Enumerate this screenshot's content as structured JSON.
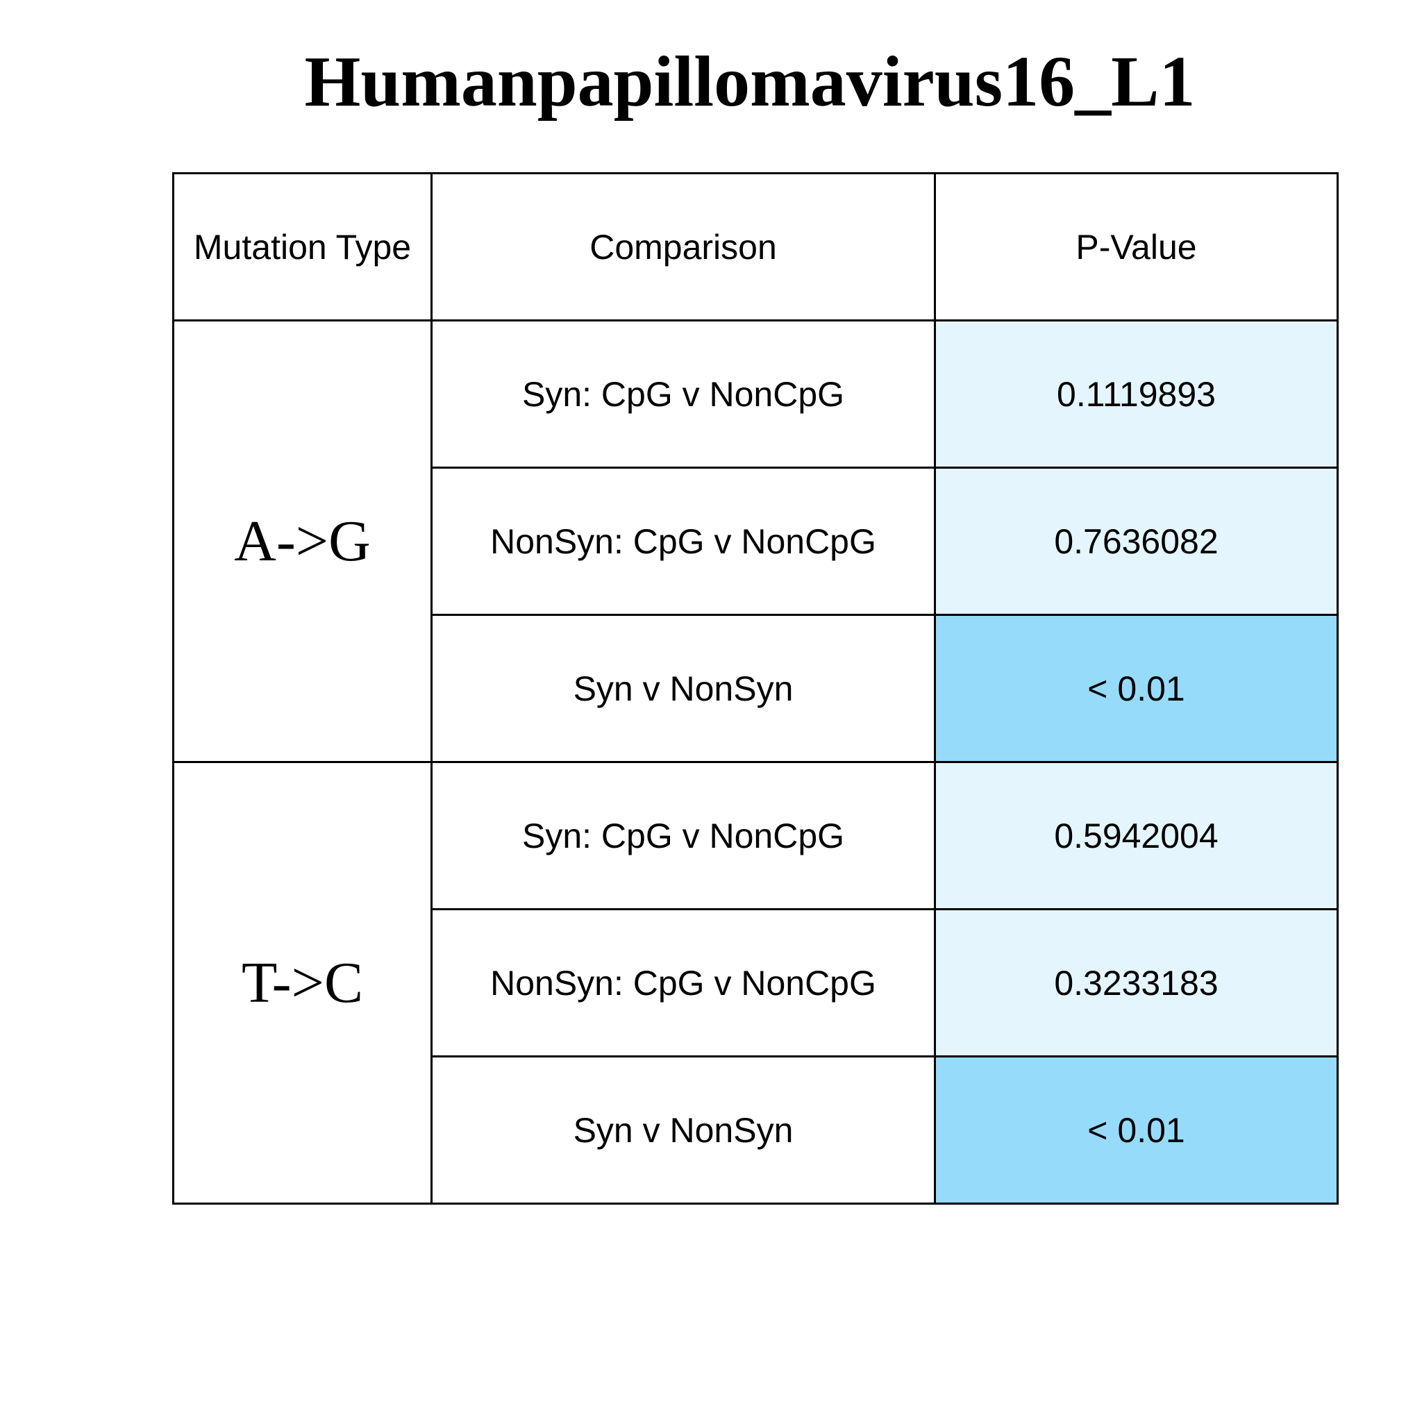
{
  "chart_data": {
    "type": "table",
    "title": "Humanpapillomavirus16_L1",
    "columns": [
      "Mutation Type",
      "Comparison",
      "P-Value"
    ],
    "groups": [
      "A->G",
      "T->C"
    ],
    "rows": [
      {
        "group": "A->G",
        "comparison": "Syn: CpG v NonCpG",
        "p_value": "0.1119893",
        "significant": false
      },
      {
        "group": "A->G",
        "comparison": "NonSyn: CpG v NonCpG",
        "p_value": "0.7636082",
        "significant": false
      },
      {
        "group": "A->G",
        "comparison": "Syn v NonSyn",
        "p_value": "< 0.01",
        "significant": true
      },
      {
        "group": "T->C",
        "comparison": "Syn: CpG v NonCpG",
        "p_value": "0.5942004",
        "significant": false
      },
      {
        "group": "T->C",
        "comparison": "NonSyn: CpG v NonCpG",
        "p_value": "0.3233183",
        "significant": false
      },
      {
        "group": "T->C",
        "comparison": "Syn v NonSyn",
        "p_value": "< 0.01",
        "significant": true
      }
    ],
    "colors": {
      "significant": "#97dbfb",
      "not_significant": "#e4f5fd",
      "border": "#000000"
    }
  }
}
